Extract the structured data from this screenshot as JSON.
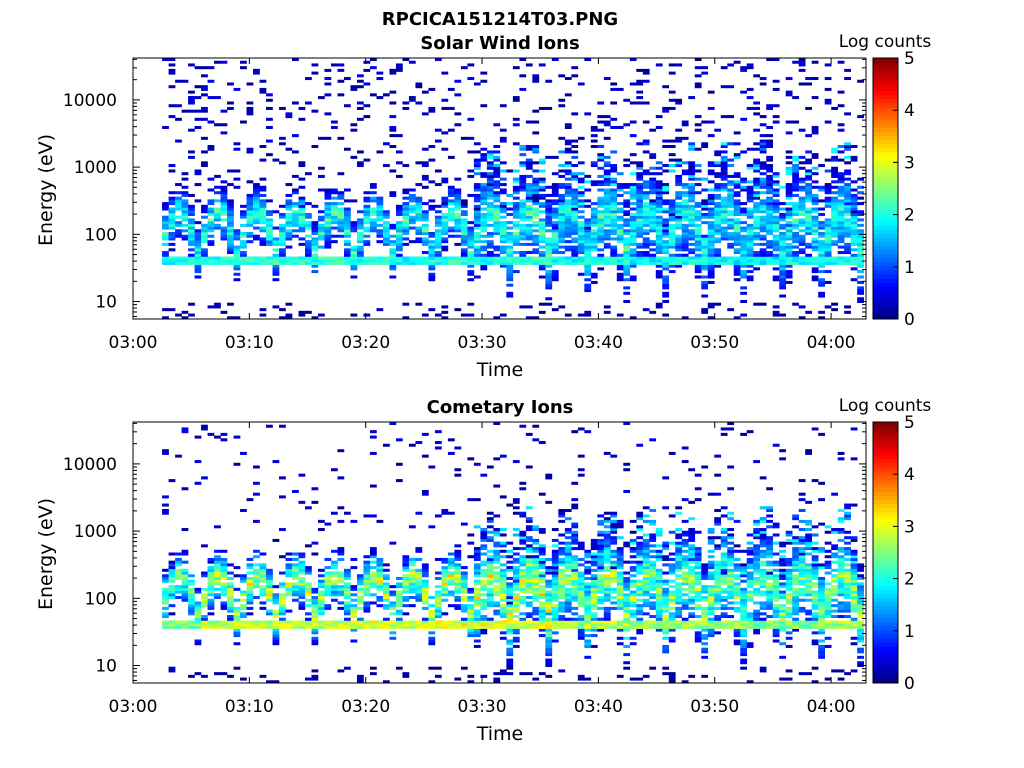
{
  "figure": {
    "title": "RPCICA151214T03.PNG"
  },
  "chart_data": [
    {
      "type": "heatmap",
      "title": "Solar Wind Ions",
      "xlabel": "Time",
      "ylabel": "Energy (eV)",
      "x_tick_labels": [
        "03:00",
        "03:10",
        "03:20",
        "03:30",
        "03:40",
        "03:50",
        "04:00"
      ],
      "x_ticks_minutes": [
        0,
        10,
        20,
        30,
        40,
        50,
        60
      ],
      "xlim_minutes": [
        0,
        63
      ],
      "y_scale": "log",
      "ylim": [
        5.5,
        42000
      ],
      "y_tick_labels": [
        "10",
        "100",
        "1000",
        "10000"
      ],
      "y_ticks": [
        10,
        100,
        1000,
        10000
      ],
      "colorbar": {
        "label": "Log counts",
        "range": [
          0,
          5
        ],
        "tick_labels": [
          "0",
          "1",
          "2",
          "3",
          "4",
          "5"
        ],
        "colormap": "jet"
      },
      "data_start_minute": 2.5,
      "sweep_period_minutes": 3.35,
      "sweep_count": 18,
      "cells_per_sweep": 6,
      "energy_bins": 96,
      "background_noise_fraction": 0.11,
      "peak_energy_ev": 40,
      "peak_log_counts": [
        2.2,
        2.3,
        2.4,
        2.3,
        2.4,
        2.3,
        2.2,
        2.3,
        2.3,
        2.4,
        2.2,
        2.3,
        2.1,
        2.2,
        2.1,
        2.1,
        2.2,
        2.2
      ],
      "extended_spread_from_minute": 28,
      "low_energy_streaks": true
    },
    {
      "type": "heatmap",
      "title": "Cometary Ions",
      "xlabel": "Time",
      "ylabel": "Energy (eV)",
      "x_tick_labels": [
        "03:00",
        "03:10",
        "03:20",
        "03:30",
        "03:40",
        "03:50",
        "04:00"
      ],
      "x_ticks_minutes": [
        0,
        10,
        20,
        30,
        40,
        50,
        60
      ],
      "xlim_minutes": [
        0,
        63
      ],
      "y_scale": "log",
      "ylim": [
        5.5,
        42000
      ],
      "y_tick_labels": [
        "10",
        "100",
        "1000",
        "10000"
      ],
      "y_ticks": [
        10,
        100,
        1000,
        10000
      ],
      "colorbar": {
        "label": "Log counts",
        "range": [
          0,
          5
        ],
        "tick_labels": [
          "0",
          "1",
          "2",
          "3",
          "4",
          "5"
        ],
        "colormap": "jet"
      },
      "data_start_minute": 2.5,
      "sweep_period_minutes": 3.35,
      "sweep_count": 18,
      "cells_per_sweep": 6,
      "energy_bins": 96,
      "background_noise_fraction": 0.05,
      "peak_energy_ev": 40,
      "peak_log_counts": [
        2.8,
        3.2,
        3.3,
        3.3,
        3.2,
        3.3,
        3.3,
        3.4,
        3.4,
        3.4,
        3.0,
        3.1,
        2.9,
        3.0,
        2.9,
        2.8,
        2.9,
        3.0
      ],
      "extended_spread_from_minute": 28,
      "low_energy_streaks": true
    }
  ]
}
